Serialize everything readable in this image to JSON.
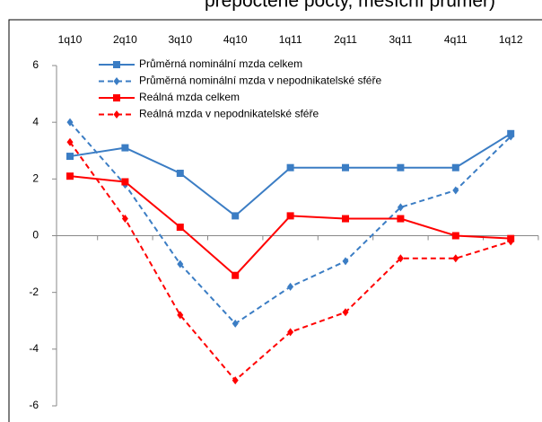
{
  "chart_data": {
    "type": "line",
    "title": "přepočtené počty, měsíční průměr)",
    "categories": [
      "1q10",
      "2q10",
      "3q10",
      "4q10",
      "1q11",
      "2q11",
      "3q11",
      "4q11",
      "1q12"
    ],
    "series": [
      {
        "name": "Průměrná nominální mzda celkem",
        "color": "#3b7dc4",
        "marker": "square",
        "dashed": false,
        "values": [
          2.8,
          3.1,
          2.2,
          0.7,
          2.4,
          2.4,
          2.4,
          2.4,
          3.6
        ]
      },
      {
        "name": "Průměrná nominální mzda v nepodnikatelské sféře",
        "color": "#3b7dc4",
        "marker": "diamond",
        "dashed": true,
        "values": [
          4.0,
          1.8,
          -1.0,
          -3.1,
          -1.8,
          -0.9,
          1.0,
          1.6,
          3.5
        ]
      },
      {
        "name": "Reálná mzda celkem",
        "color": "#ff0000",
        "marker": "square",
        "dashed": false,
        "values": [
          2.1,
          1.9,
          0.3,
          -1.4,
          0.7,
          0.6,
          0.6,
          0.0,
          -0.1
        ]
      },
      {
        "name": "Reálná mzda v nepodnikatelské sféře",
        "color": "#ff0000",
        "marker": "diamond",
        "dashed": true,
        "values": [
          3.3,
          0.6,
          -2.8,
          -5.1,
          -3.4,
          -2.7,
          -0.8,
          -0.8,
          -0.2
        ]
      }
    ],
    "ylim": [
      -6,
      6
    ],
    "yticks": [
      -6,
      -4,
      -2,
      0,
      2,
      4,
      6
    ],
    "grid": false,
    "legend": "top"
  }
}
